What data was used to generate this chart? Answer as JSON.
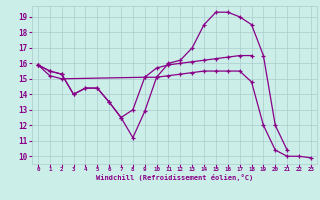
{
  "background_color": "#cceee8",
  "grid_color": "#aacccc",
  "line_color": "#880088",
  "xlabel": "Windchill (Refroidissement éolien,°C)",
  "xlim": [
    -0.5,
    23.5
  ],
  "ylim": [
    9.5,
    19.7
  ],
  "yticks": [
    10,
    11,
    12,
    13,
    14,
    15,
    16,
    17,
    18,
    19
  ],
  "xticks": [
    0,
    1,
    2,
    3,
    4,
    5,
    6,
    7,
    8,
    9,
    10,
    11,
    12,
    13,
    14,
    15,
    16,
    17,
    18,
    19,
    20,
    21,
    22,
    23
  ],
  "line1_x": [
    0,
    1,
    2,
    3,
    4,
    5,
    6,
    7,
    8,
    9,
    10,
    11,
    12,
    13,
    14,
    15,
    16,
    17,
    18,
    19,
    20,
    21
  ],
  "line1_y": [
    15.9,
    15.5,
    15.3,
    14.0,
    14.4,
    14.4,
    13.5,
    12.5,
    11.2,
    12.9,
    15.1,
    16.0,
    16.2,
    17.0,
    18.5,
    19.3,
    19.3,
    19.0,
    18.5,
    16.5,
    12.0,
    10.4
  ],
  "line2_x": [
    0,
    1,
    2,
    9,
    10,
    11,
    12,
    13,
    14,
    15,
    16,
    17,
    18
  ],
  "line2_y": [
    15.9,
    15.2,
    15.0,
    15.1,
    15.7,
    15.9,
    16.0,
    16.1,
    16.2,
    16.3,
    16.4,
    16.5,
    16.5
  ],
  "line3_x": [
    0,
    1,
    2,
    3,
    4,
    5,
    6,
    7,
    8,
    9,
    10,
    11,
    12,
    13,
    14,
    15,
    16,
    17,
    18,
    19,
    20,
    21,
    22,
    23
  ],
  "line3_y": [
    15.9,
    15.5,
    15.3,
    14.0,
    14.4,
    14.4,
    13.5,
    12.5,
    13.0,
    15.1,
    15.1,
    15.2,
    15.3,
    15.4,
    15.5,
    15.5,
    15.5,
    15.5,
    14.8,
    12.0,
    10.4,
    10.0,
    10.0,
    9.9
  ]
}
